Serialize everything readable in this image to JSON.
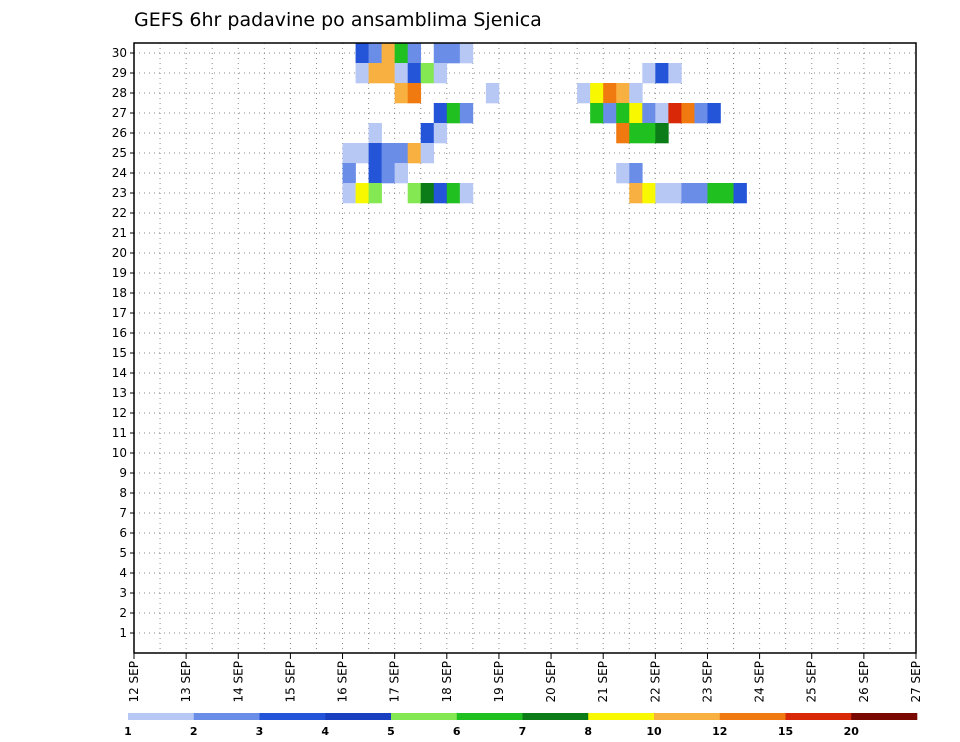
{
  "chart_data": {
    "type": "heatmap",
    "title": "GEFS 6hr padavine po ansamblima Sjenica",
    "x_dates": [
      "12 SEP",
      "13 SEP",
      "14 SEP",
      "15 SEP",
      "16 SEP",
      "17 SEP",
      "18 SEP",
      "19 SEP",
      "20 SEP",
      "21 SEP",
      "22 SEP",
      "23 SEP",
      "24 SEP",
      "25 SEP",
      "26 SEP",
      "27 SEP"
    ],
    "y_members": [
      "1",
      "2",
      "3",
      "4",
      "5",
      "6",
      "7",
      "8",
      "9",
      "10",
      "11",
      "12",
      "13",
      "14",
      "15",
      "16",
      "17",
      "18",
      "19",
      "20",
      "21",
      "22",
      "23",
      "24",
      "25",
      "26",
      "27",
      "28",
      "29",
      "30"
    ],
    "time_step_hours": 6,
    "grid": true,
    "colorbar": {
      "labels": [
        "1",
        "2",
        "3",
        "4",
        "5",
        "6",
        "7",
        "8",
        "10",
        "12",
        "15",
        "20"
      ],
      "colors": [
        "#b8c8f4",
        "#6a8ee8",
        "#2454d8",
        "#1a3ec0",
        "#84e852",
        "#20c020",
        "#0c7c18",
        "#f8f800",
        "#f8b040",
        "#f07a10",
        "#d82808",
        "#780800"
      ]
    },
    "cells": [
      [
        "16 SEP 06Z",
        30,
        3
      ],
      [
        "16 SEP 12Z",
        30,
        2
      ],
      [
        "16 SEP 18Z",
        30,
        10
      ],
      [
        "17 SEP 00Z",
        30,
        6
      ],
      [
        "17 SEP 06Z",
        30,
        2
      ],
      [
        "17 SEP 18Z",
        30,
        2
      ],
      [
        "18 SEP 00Z",
        30,
        2
      ],
      [
        "18 SEP 06Z",
        30,
        1
      ],
      [
        "16 SEP 06Z",
        29,
        1
      ],
      [
        "16 SEP 12Z",
        29,
        10
      ],
      [
        "16 SEP 18Z",
        29,
        10
      ],
      [
        "17 SEP 00Z",
        29,
        1
      ],
      [
        "17 SEP 06Z",
        29,
        3
      ],
      [
        "17 SEP 12Z",
        29,
        5
      ],
      [
        "17 SEP 18Z",
        29,
        1
      ],
      [
        "21 SEP 18Z",
        29,
        1
      ],
      [
        "22 SEP 00Z",
        29,
        3
      ],
      [
        "22 SEP 06Z",
        29,
        1
      ],
      [
        "17 SEP 00Z",
        28,
        10
      ],
      [
        "17 SEP 06Z",
        28,
        12
      ],
      [
        "18 SEP 18Z",
        28,
        1
      ],
      [
        "20 SEP 12Z",
        28,
        1
      ],
      [
        "20 SEP 18Z",
        28,
        8
      ],
      [
        "21 SEP 00Z",
        28,
        12
      ],
      [
        "21 SEP 06Z",
        28,
        10
      ],
      [
        "21 SEP 12Z",
        28,
        1
      ],
      [
        "17 SEP 18Z",
        27,
        3
      ],
      [
        "18 SEP 00Z",
        27,
        6
      ],
      [
        "18 SEP 06Z",
        27,
        2
      ],
      [
        "20 SEP 18Z",
        27,
        6
      ],
      [
        "21 SEP 00Z",
        27,
        2
      ],
      [
        "21 SEP 06Z",
        27,
        6
      ],
      [
        "21 SEP 12Z",
        27,
        8
      ],
      [
        "21 SEP 18Z",
        27,
        2
      ],
      [
        "22 SEP 00Z",
        27,
        1
      ],
      [
        "22 SEP 06Z",
        27,
        15
      ],
      [
        "22 SEP 12Z",
        27,
        12
      ],
      [
        "22 SEP 18Z",
        27,
        2
      ],
      [
        "23 SEP 00Z",
        27,
        3
      ],
      [
        "16 SEP 12Z",
        26,
        1
      ],
      [
        "17 SEP 12Z",
        26,
        3
      ],
      [
        "17 SEP 18Z",
        26,
        1
      ],
      [
        "21 SEP 06Z",
        26,
        12
      ],
      [
        "21 SEP 12Z",
        26,
        6
      ],
      [
        "21 SEP 18Z",
        26,
        6
      ],
      [
        "22 SEP 00Z",
        26,
        7
      ],
      [
        "16 SEP 00Z",
        25,
        1
      ],
      [
        "16 SEP 06Z",
        25,
        1
      ],
      [
        "16 SEP 12Z",
        25,
        3
      ],
      [
        "16 SEP 18Z",
        25,
        2
      ],
      [
        "17 SEP 00Z",
        25,
        2
      ],
      [
        "17 SEP 06Z",
        25,
        10
      ],
      [
        "17 SEP 12Z",
        25,
        1
      ],
      [
        "16 SEP 00Z",
        24,
        2
      ],
      [
        "16 SEP 12Z",
        24,
        3
      ],
      [
        "16 SEP 18Z",
        24,
        2
      ],
      [
        "17 SEP 00Z",
        24,
        1
      ],
      [
        "21 SEP 06Z",
        24,
        1
      ],
      [
        "21 SEP 12Z",
        24,
        2
      ],
      [
        "16 SEP 00Z",
        23,
        1
      ],
      [
        "16 SEP 06Z",
        23,
        8
      ],
      [
        "16 SEP 12Z",
        23,
        5
      ],
      [
        "17 SEP 06Z",
        23,
        5
      ],
      [
        "17 SEP 12Z",
        23,
        7
      ],
      [
        "17 SEP 18Z",
        23,
        3
      ],
      [
        "18 SEP 00Z",
        23,
        6
      ],
      [
        "18 SEP 06Z",
        23,
        1
      ],
      [
        "21 SEP 12Z",
        23,
        10
      ],
      [
        "21 SEP 18Z",
        23,
        8
      ],
      [
        "22 SEP 00Z",
        23,
        1
      ],
      [
        "22 SEP 06Z",
        23,
        1
      ],
      [
        "22 SEP 12Z",
        23,
        2
      ],
      [
        "22 SEP 18Z",
        23,
        2
      ],
      [
        "23 SEP 00Z",
        23,
        6
      ],
      [
        "23 SEP 06Z",
        23,
        6
      ],
      [
        "23 SEP 12Z",
        23,
        3
      ]
    ],
    "xlabel": "",
    "ylabel": ""
  }
}
